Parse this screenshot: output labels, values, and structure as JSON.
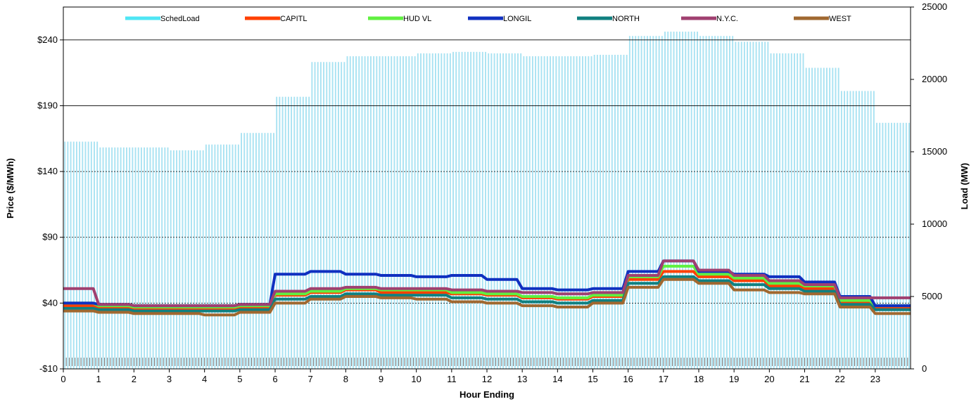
{
  "chart_data": {
    "type": "line",
    "title": "",
    "xlabel": "Hour Ending",
    "ylabel_left": "Price ($/MWh)",
    "ylabel_right": "Load (MW)",
    "x_ticks": [
      "0",
      "1",
      "2",
      "3",
      "4",
      "5",
      "6",
      "7",
      "8",
      "9",
      "10",
      "11",
      "12",
      "13",
      "14",
      "15",
      "16",
      "17",
      "18",
      "19",
      "20",
      "21",
      "22",
      "23"
    ],
    "y_left_ticks": [
      "-$10",
      "$40",
      "$90",
      "$140",
      "$190",
      "$240"
    ],
    "y_left_range": [
      -10,
      265
    ],
    "y_right_ticks": [
      "0",
      "5000",
      "10000",
      "15000",
      "20000",
      "25000"
    ],
    "y_right_range": [
      0,
      25000
    ],
    "legend_position": "top",
    "load_series": {
      "name": "SchedLoad",
      "color": "#4fe6f4",
      "axis": "right",
      "style": "columns",
      "values": [
        15700,
        15300,
        15300,
        15100,
        15500,
        16300,
        18800,
        21200,
        21600,
        21600,
        21800,
        21900,
        21800,
        21600,
        21600,
        21700,
        23000,
        23300,
        23000,
        22600,
        21800,
        20800,
        19200,
        17000
      ]
    },
    "series": [
      {
        "name": "SchedLoad",
        "color": "#4fe6f4"
      },
      {
        "name": "CAPITL",
        "color": "#ff4000",
        "values": [
          38,
          37,
          36,
          36,
          36,
          37,
          46,
          48,
          50,
          48,
          48,
          47,
          46,
          44,
          43,
          45,
          58,
          64,
          60,
          57,
          53,
          51,
          40,
          37
        ]
      },
      {
        "name": "HUD VL",
        "color": "#60f040",
        "values": [
          40,
          38,
          37,
          37,
          37,
          38,
          47,
          49,
          51,
          50,
          50,
          48,
          47,
          45,
          44,
          46,
          60,
          68,
          62,
          59,
          55,
          53,
          42,
          38
        ]
      },
      {
        "name": "LONGIL",
        "color": "#1030c0",
        "values": [
          40,
          39,
          38,
          38,
          38,
          39,
          62,
          64,
          62,
          61,
          60,
          61,
          58,
          51,
          50,
          51,
          64,
          72,
          64,
          62,
          60,
          56,
          45,
          38
        ]
      },
      {
        "name": "NORTH",
        "color": "#108080",
        "values": [
          36,
          35,
          34,
          34,
          34,
          35,
          43,
          45,
          47,
          46,
          46,
          44,
          43,
          41,
          40,
          42,
          55,
          60,
          57,
          54,
          51,
          49,
          39,
          35
        ]
      },
      {
        "name": "N.Y.C.",
        "color": "#a04070",
        "values": [
          51,
          39,
          38,
          38,
          38,
          39,
          49,
          51,
          52,
          51,
          51,
          50,
          49,
          48,
          47,
          48,
          61,
          72,
          65,
          61,
          57,
          54,
          44,
          44
        ]
      },
      {
        "name": "WEST",
        "color": "#a06830",
        "values": [
          34,
          33,
          32,
          32,
          31,
          33,
          40,
          43,
          45,
          44,
          43,
          41,
          40,
          38,
          37,
          40,
          52,
          58,
          55,
          50,
          48,
          47,
          37,
          32
        ]
      }
    ]
  }
}
